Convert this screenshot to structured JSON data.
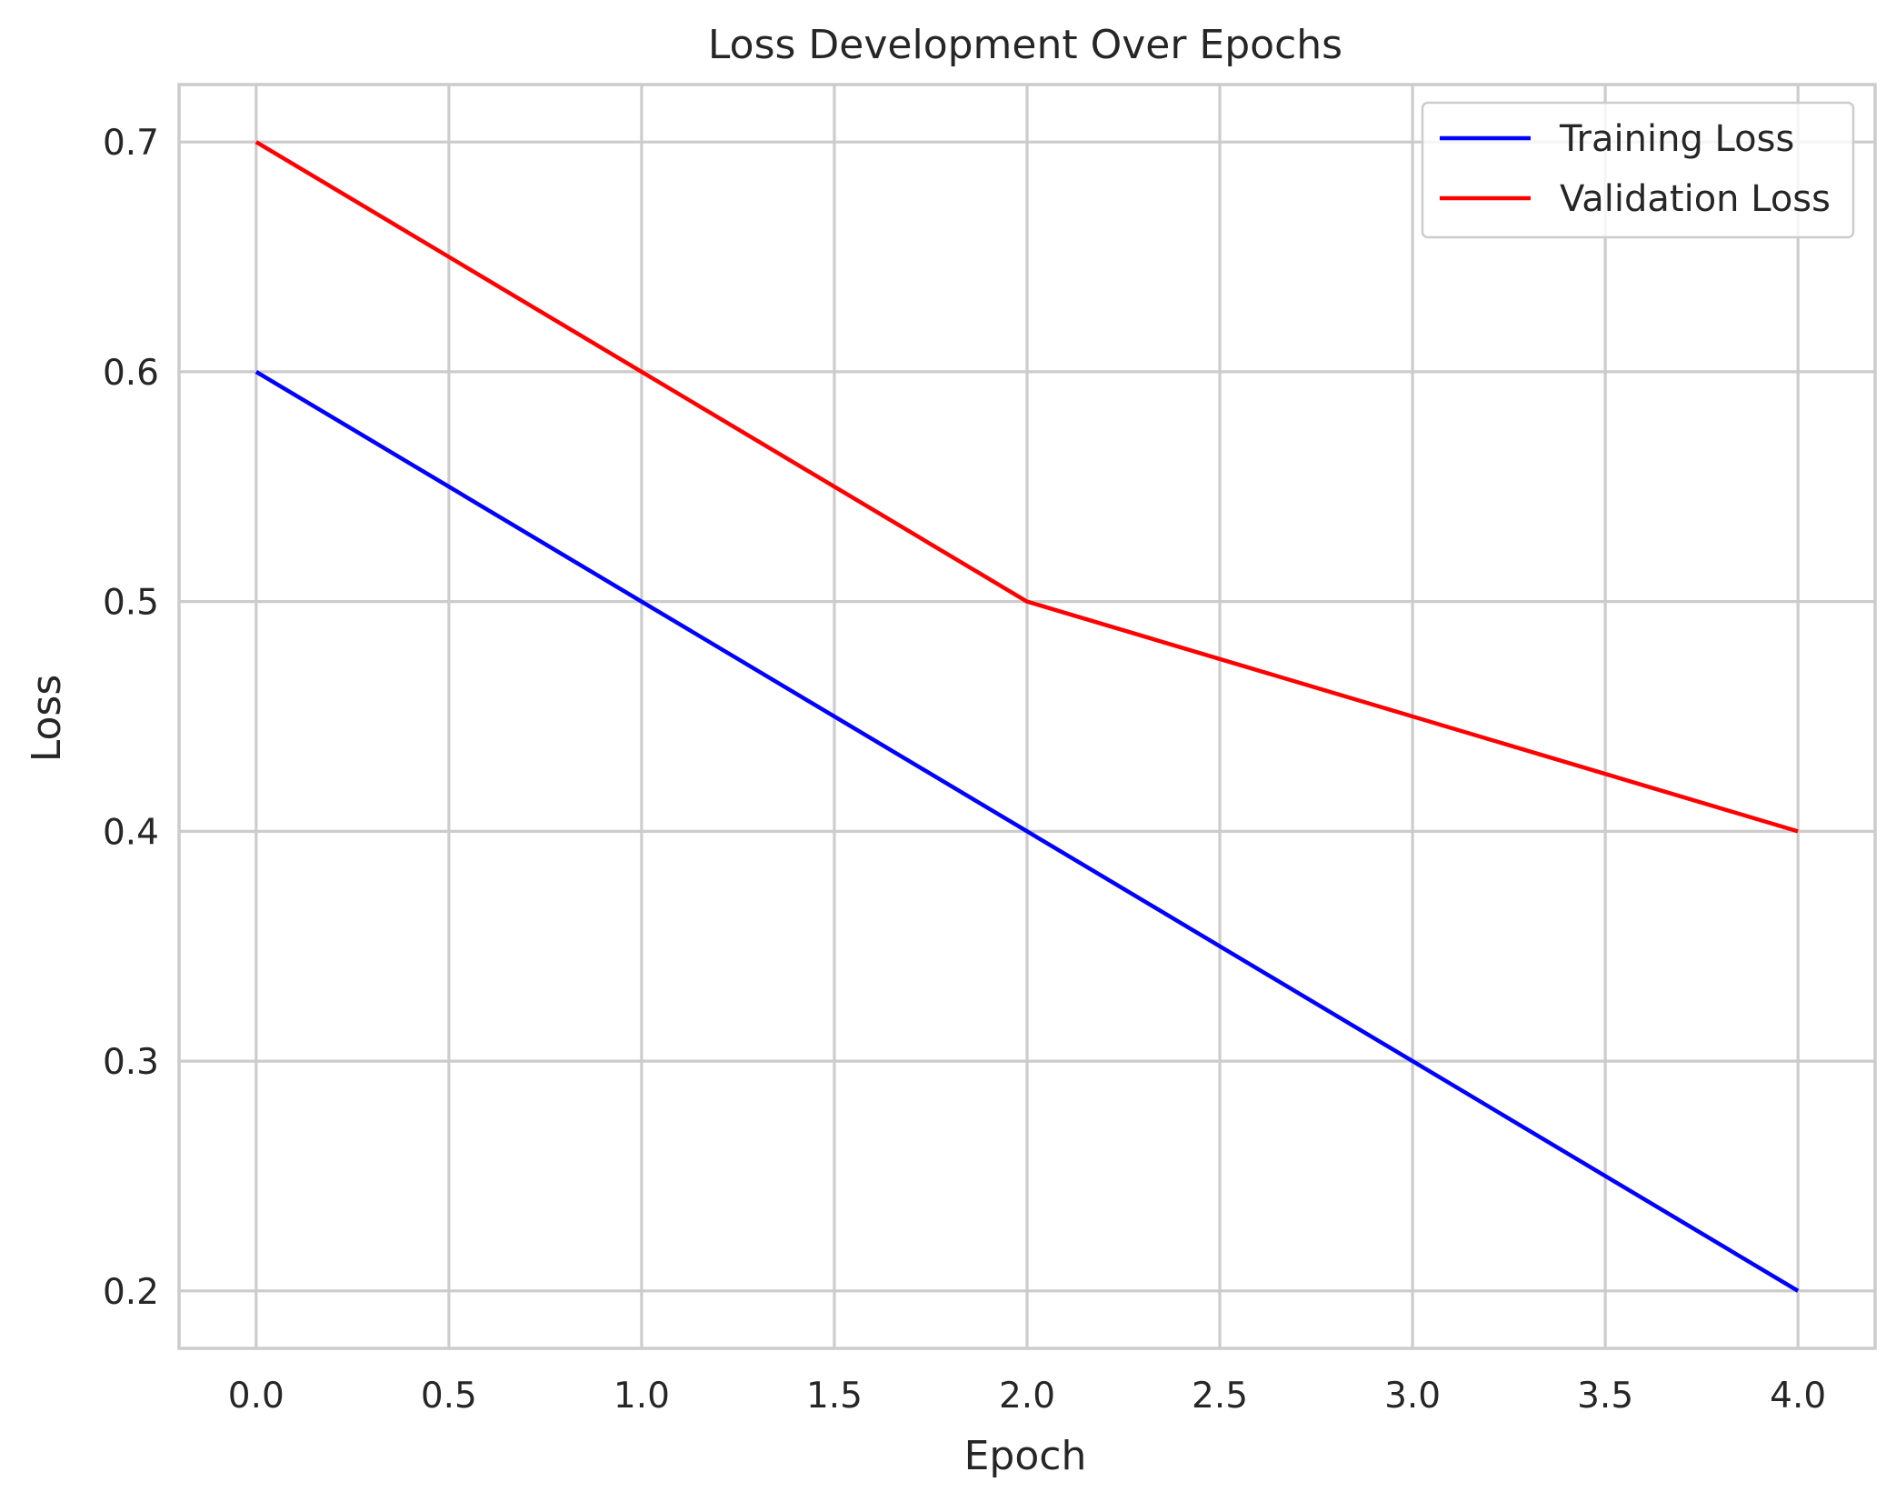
{
  "chart_data": {
    "type": "line",
    "title": "Loss Development Over Epochs",
    "xlabel": "Epoch",
    "ylabel": "Loss",
    "x": [
      0,
      1,
      2,
      3,
      4
    ],
    "xlim": [
      -0.2,
      4.2
    ],
    "ylim": [
      0.175,
      0.725
    ],
    "xticks": [
      0.0,
      0.5,
      1.0,
      1.5,
      2.0,
      2.5,
      3.0,
      3.5,
      4.0
    ],
    "xtick_labels": [
      "0.0",
      "0.5",
      "1.0",
      "1.5",
      "2.0",
      "2.5",
      "3.0",
      "3.5",
      "4.0"
    ],
    "yticks": [
      0.2,
      0.3,
      0.4,
      0.5,
      0.6,
      0.7
    ],
    "ytick_labels": [
      "0.2",
      "0.3",
      "0.4",
      "0.5",
      "0.6",
      "0.7"
    ],
    "grid": true,
    "legend_position": "top-right",
    "series": [
      {
        "name": "Training Loss",
        "color": "#0000ff",
        "values": [
          0.6,
          0.5,
          0.4,
          0.3,
          0.2
        ]
      },
      {
        "name": "Validation Loss",
        "color": "#ff0000",
        "values": [
          0.7,
          0.6,
          0.5,
          0.45,
          0.4
        ]
      }
    ]
  }
}
